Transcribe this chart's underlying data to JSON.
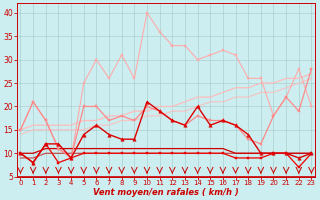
{
  "xlabel": "Vent moyen/en rafales ( km/h )",
  "background_color": "#cceef0",
  "grid_color": "#aacccc",
  "x": [
    0,
    1,
    2,
    3,
    4,
    5,
    6,
    7,
    8,
    9,
    10,
    11,
    12,
    13,
    14,
    15,
    16,
    17,
    18,
    19,
    20,
    21,
    22,
    23
  ],
  "ylim": [
    5,
    42
  ],
  "xlim": [
    -0.3,
    23.3
  ],
  "yticks": [
    5,
    10,
    15,
    20,
    25,
    30,
    35,
    40
  ],
  "lines": [
    {
      "y": [
        15,
        21,
        17,
        11,
        9,
        25,
        30,
        26,
        31,
        26,
        40,
        36,
        33,
        33,
        30,
        31,
        32,
        31,
        26,
        26,
        18,
        22,
        28,
        20
      ],
      "color": "#ffaaaa",
      "linewidth": 0.8,
      "marker": "s",
      "markersize": 2.0,
      "zorder": 3,
      "alpha": 1.0
    },
    {
      "y": [
        15,
        16,
        16,
        16,
        16,
        17,
        17,
        18,
        18,
        19,
        19,
        20,
        20,
        21,
        22,
        22,
        23,
        24,
        24,
        25,
        25,
        26,
        26,
        27
      ],
      "color": "#ffbbbb",
      "linewidth": 0.9,
      "marker": null,
      "markersize": 0,
      "zorder": 2,
      "alpha": 1.0
    },
    {
      "y": [
        14,
        15,
        15,
        15,
        15,
        15,
        16,
        16,
        17,
        17,
        18,
        18,
        19,
        19,
        20,
        21,
        21,
        22,
        22,
        23,
        23,
        24,
        25,
        26
      ],
      "color": "#ffbbbb",
      "linewidth": 0.9,
      "marker": null,
      "markersize": 0,
      "zorder": 2,
      "alpha": 0.8
    },
    {
      "y": [
        15,
        21,
        17,
        11,
        9,
        20,
        20,
        17,
        18,
        17,
        20,
        19,
        17,
        16,
        18,
        17,
        17,
        16,
        13,
        12,
        18,
        22,
        19,
        28
      ],
      "color": "#ff8888",
      "linewidth": 0.9,
      "marker": "s",
      "markersize": 2.0,
      "zorder": 4,
      "alpha": 1.0
    },
    {
      "y": [
        10,
        8,
        12,
        12,
        9,
        14,
        16,
        14,
        13,
        13,
        21,
        19,
        17,
        16,
        20,
        16,
        17,
        16,
        14,
        10,
        10,
        10,
        9,
        10
      ],
      "color": "#dd0000",
      "linewidth": 1.0,
      "marker": "^",
      "markersize": 2.5,
      "zorder": 6,
      "alpha": 1.0
    },
    {
      "y": [
        10,
        10,
        11,
        11,
        11,
        11,
        11,
        11,
        11,
        11,
        11,
        11,
        11,
        11,
        11,
        11,
        11,
        10,
        10,
        10,
        10,
        10,
        10,
        10
      ],
      "color": "#cc0000",
      "linewidth": 0.9,
      "marker": null,
      "markersize": 0,
      "zorder": 3,
      "alpha": 1.0
    },
    {
      "y": [
        9,
        9,
        10,
        10,
        10,
        10,
        10,
        10,
        10,
        10,
        10,
        10,
        10,
        10,
        10,
        10,
        10,
        10,
        10,
        10,
        10,
        10,
        10,
        10
      ],
      "color": "#cc0000",
      "linewidth": 0.8,
      "marker": null,
      "markersize": 0,
      "zorder": 3,
      "alpha": 0.7
    },
    {
      "y": [
        10,
        8,
        12,
        8,
        9,
        10,
        10,
        10,
        10,
        10,
        10,
        10,
        10,
        10,
        10,
        10,
        10,
        9,
        9,
        9,
        10,
        10,
        7,
        10
      ],
      "color": "#ee0000",
      "linewidth": 0.9,
      "marker": "s",
      "markersize": 1.8,
      "zorder": 5,
      "alpha": 1.0
    }
  ],
  "arrow_color": "#cc0000",
  "tick_color": "#cc0000",
  "label_color": "#cc0000"
}
